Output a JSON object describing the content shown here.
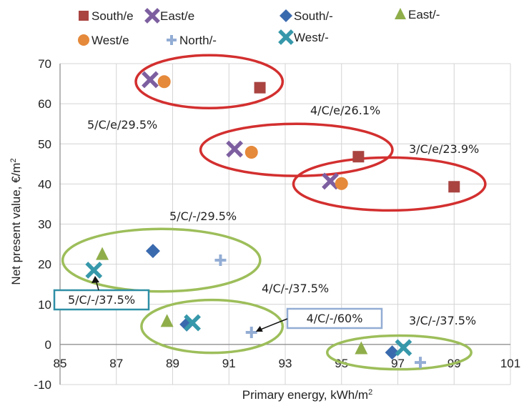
{
  "chart_data": {
    "type": "scatter",
    "xlabel": "Primary energy, kWh/m",
    "xlabel_sup": "2",
    "ylabel": "Net present value, €/m",
    "ylabel_sup": "2",
    "xlim": [
      85,
      101
    ],
    "ylim": [
      -10,
      70
    ],
    "xticks": [
      85,
      87,
      89,
      91,
      93,
      95,
      97,
      99,
      101
    ],
    "yticks": [
      -10,
      0,
      10,
      20,
      30,
      40,
      50,
      60,
      70
    ],
    "grid": "both",
    "legend_position": "top",
    "series": [
      {
        "name": "South/e",
        "marker": "square",
        "color": "#A94441",
        "points": [
          [
            92.1,
            64
          ],
          [
            95.6,
            46.8
          ],
          [
            99.0,
            39.3
          ]
        ]
      },
      {
        "name": "East/e",
        "marker": "x",
        "color": "#7D5FA0",
        "points": [
          [
            88.2,
            66
          ],
          [
            91.2,
            48.7
          ],
          [
            94.6,
            40.7
          ]
        ]
      },
      {
        "name": "South/-",
        "marker": "diamond",
        "color": "#3A6AAE",
        "points": [
          [
            88.3,
            23.3
          ],
          [
            89.5,
            5
          ],
          [
            96.8,
            -2
          ]
        ]
      },
      {
        "name": "East/-",
        "marker": "triangle",
        "color": "#8FAE4A",
        "points": [
          [
            86.5,
            22.5
          ],
          [
            88.8,
            5.8
          ],
          [
            95.7,
            -1
          ]
        ]
      },
      {
        "name": "West/e",
        "marker": "circle",
        "color": "#E5893A",
        "points": [
          [
            88.7,
            65.5
          ],
          [
            91.8,
            47.9
          ],
          [
            95.0,
            40.1
          ]
        ]
      },
      {
        "name": "North/-",
        "marker": "plus",
        "color": "#93ADD4",
        "points": [
          [
            90.7,
            21
          ],
          [
            91.8,
            3
          ],
          [
            97.8,
            -4.5
          ]
        ]
      },
      {
        "name": "West/-",
        "marker": "x",
        "color": "#3698AA",
        "points": [
          [
            86.2,
            18.5
          ],
          [
            89.7,
            5.4
          ],
          [
            97.2,
            -0.8
          ]
        ]
      }
    ],
    "annotations": [
      {
        "text": "5/C/e/29.5%"
      },
      {
        "text": "4/C/e/26.1%"
      },
      {
        "text": "3/C/e/23.9%"
      },
      {
        "text": "5/C/-/29.5%"
      },
      {
        "text": "4/C/-/37.5%"
      },
      {
        "text": "3/C/-/37.5%"
      },
      {
        "text": "5/C/-/37.5%"
      },
      {
        "text": "4/C/-/60%"
      }
    ],
    "ellipses_note_colors": {
      "e_group": "#D32F2F",
      "dash_group": "#9DBE5A"
    }
  }
}
